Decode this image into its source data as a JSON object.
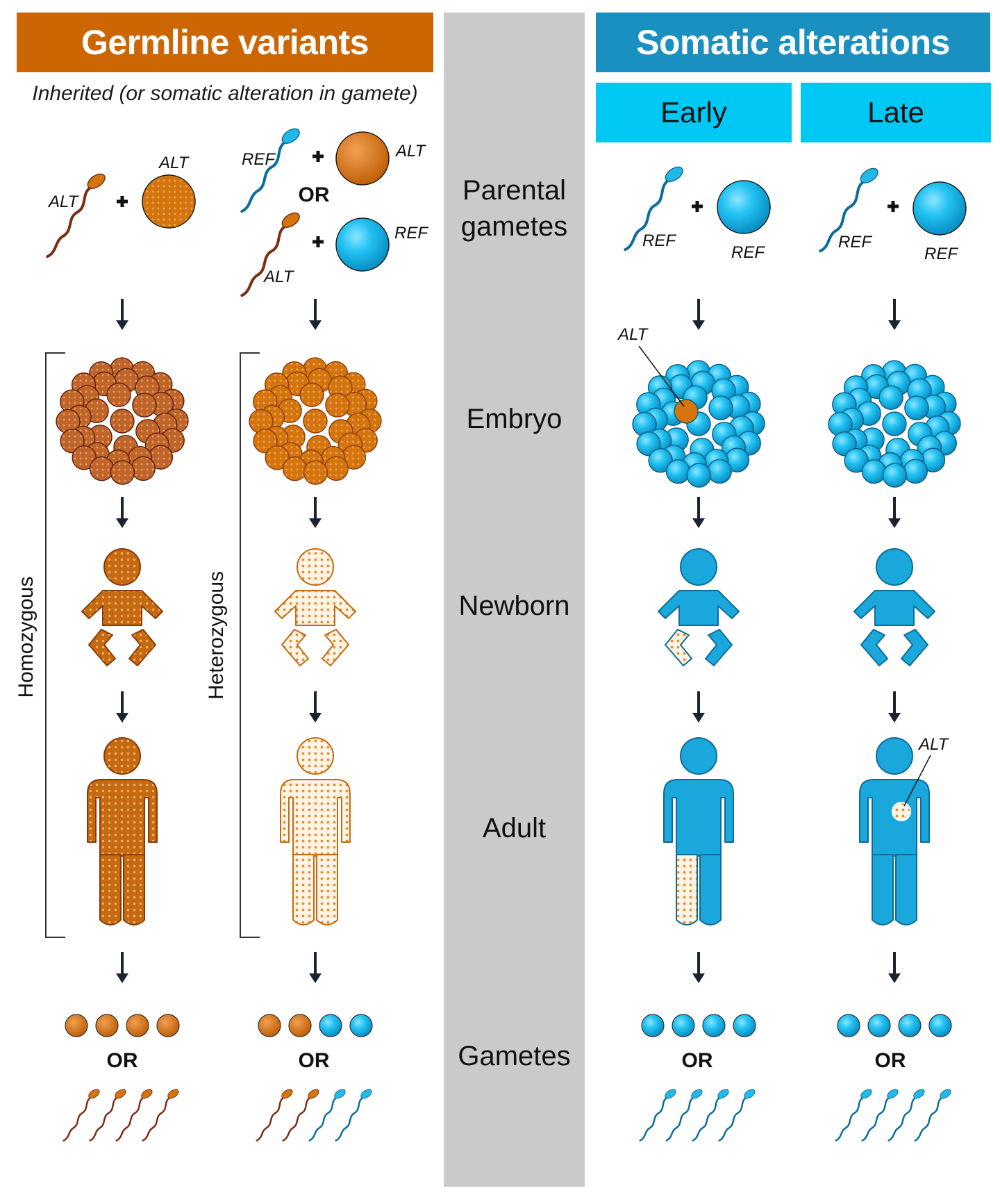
{
  "headers": {
    "germline": "Germline variants",
    "somatic": "Somatic alterations",
    "early": "Early",
    "late": "Late"
  },
  "inherited_caption": "Inherited (or somatic alteration in gamete)",
  "stages": {
    "parental_gametes_1": "Parental",
    "parental_gametes_2": "gametes",
    "embryo": "Embryo",
    "newborn": "Newborn",
    "adult": "Adult",
    "gametes": "Gametes"
  },
  "zygosity": {
    "homozygous": "Homozygous",
    "heterozygous": "Heterozygous"
  },
  "allele_labels": {
    "alt": "ALT",
    "ref": "REF"
  },
  "or_label": "OR",
  "colors": {
    "germline_orange": "#cc6602",
    "cell_orange": "#d97a0e",
    "dark_brown": "#7a2e14",
    "somatic_blue": "#1a90c0",
    "light_blue": "#00c8f5",
    "cell_blue": "#1fb6e8",
    "middle_gray": "#cacaca"
  }
}
